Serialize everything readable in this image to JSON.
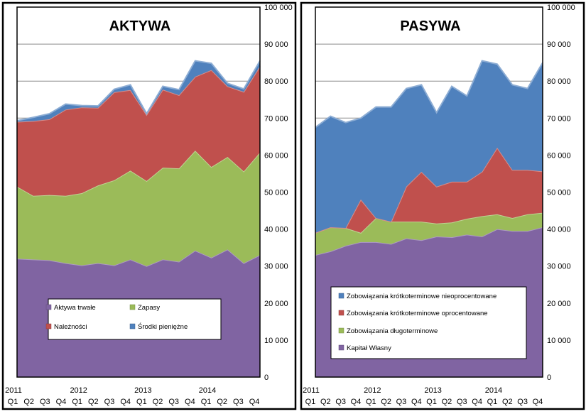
{
  "chart_data": [
    {
      "type": "area",
      "stacked": true,
      "title": "AKTYWA",
      "categories": [
        "Q1",
        "Q2",
        "Q3",
        "Q4",
        "Q1",
        "Q2",
        "Q3",
        "Q4",
        "Q1",
        "Q2",
        "Q3",
        "Q4",
        "Q1",
        "Q2",
        "Q3",
        "Q4"
      ],
      "years": [
        {
          "label": "2011",
          "index": 0
        },
        {
          "label": "2012",
          "index": 4
        },
        {
          "label": "2013",
          "index": 8
        },
        {
          "label": "2014",
          "index": 12
        }
      ],
      "ylim": [
        0,
        100000
      ],
      "yticks": [
        "0",
        "10 000",
        "20 000",
        "30 000",
        "40 000",
        "50 000",
        "60 000",
        "70 000",
        "80 000",
        "90 000",
        "100 000"
      ],
      "axis_side": "right",
      "grid": true,
      "legend_position": "bottom",
      "series": [
        {
          "name": "Aktywa trwałe",
          "color": "#8064a2",
          "values": [
            32000,
            31800,
            31600,
            30800,
            30200,
            30800,
            30200,
            31800,
            30000,
            31800,
            31200,
            34200,
            32300,
            34500,
            30800,
            33000
          ]
        },
        {
          "name": "Zapasy",
          "color": "#9bbb59",
          "values": [
            19500,
            17200,
            17600,
            18200,
            19500,
            21000,
            23000,
            24000,
            23000,
            24800,
            25200,
            27000,
            24500,
            25000,
            24800,
            27700
          ]
        },
        {
          "name": "Należności",
          "color": "#c0504d",
          "values": [
            17500,
            20200,
            20500,
            23300,
            23200,
            21000,
            23800,
            21800,
            17900,
            21100,
            19800,
            20000,
            26200,
            19100,
            21500,
            23300
          ]
        },
        {
          "name": "Środki pieniężne",
          "color": "#4f81bd",
          "values": [
            300,
            1000,
            1500,
            1500,
            500,
            500,
            800,
            1400,
            300,
            900,
            1500,
            4300,
            1800,
            800,
            800,
            1500
          ]
        }
      ]
    },
    {
      "type": "area",
      "stacked": true,
      "title": "PASYWA",
      "categories": [
        "Q1",
        "Q2",
        "Q3",
        "Q4",
        "Q1",
        "Q2",
        "Q3",
        "Q4",
        "Q1",
        "Q2",
        "Q3",
        "Q4",
        "Q1",
        "Q2",
        "Q3",
        "Q4"
      ],
      "years": [
        {
          "label": "2011",
          "index": 0
        },
        {
          "label": "2012",
          "index": 4
        },
        {
          "label": "2013",
          "index": 8
        },
        {
          "label": "2014",
          "index": 12
        }
      ],
      "ylim": [
        0,
        100000
      ],
      "yticks": [
        "0",
        "10 000",
        "20 000",
        "30 000",
        "40 000",
        "50 000",
        "60 000",
        "70 000",
        "80 000",
        "90 000",
        "100 000"
      ],
      "axis_side": "right",
      "grid": true,
      "legend_position": "bottom",
      "series": [
        {
          "name": "Kapitał Własny",
          "color": "#8064a2",
          "values": [
            33000,
            34000,
            35500,
            36500,
            36500,
            36000,
            37500,
            37000,
            38000,
            37800,
            38500,
            38000,
            40000,
            39500,
            39500,
            40500
          ]
        },
        {
          "name": "Zobowiązania długoterminowe",
          "color": "#9bbb59",
          "values": [
            6000,
            6500,
            4800,
            2500,
            6500,
            6000,
            4500,
            5000,
            3500,
            4000,
            4300,
            5500,
            4000,
            3500,
            4500,
            3900
          ]
        },
        {
          "name": "Zobowiązania krótkoterminowe oprocentowane",
          "color": "#c0504d",
          "values": [
            0,
            0,
            0,
            9000,
            0,
            0,
            9500,
            13500,
            10000,
            11000,
            10000,
            12000,
            18000,
            13000,
            12000,
            11200
          ]
        },
        {
          "name": "Zobowiązania krótkoterminowe nieoprocentowane",
          "color": "#4f81bd",
          "values": [
            28500,
            30000,
            28500,
            22000,
            30000,
            31000,
            26500,
            23500,
            20000,
            25800,
            23200,
            30000,
            22600,
            23000,
            22000,
            29400
          ]
        }
      ]
    }
  ]
}
